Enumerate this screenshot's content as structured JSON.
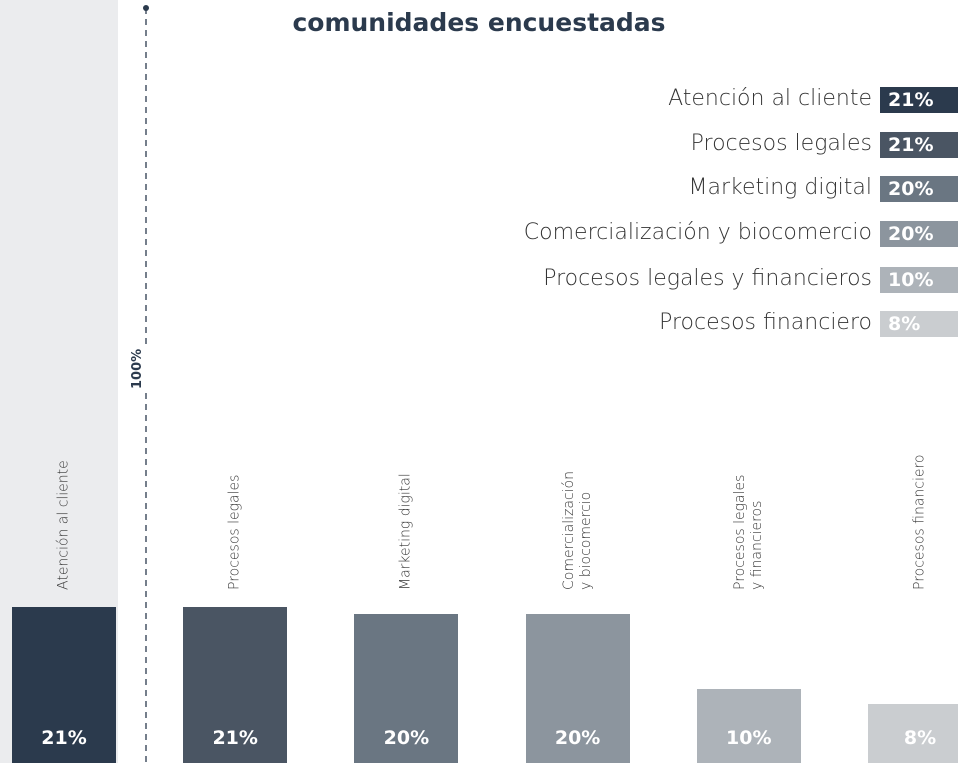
{
  "chart_data": {
    "type": "bar",
    "title": "comunidades encuestadas",
    "categories": [
      "Atención al cliente",
      "Procesos legales",
      "Marketing digital",
      "Comercialización y biocomercio",
      "Procesos legales y financieros",
      "Procesos financiero"
    ],
    "values": [
      21,
      21,
      20,
      20,
      10,
      8
    ],
    "value_labels": [
      "21%",
      "21%",
      "20%",
      "20%",
      "10%",
      "8%"
    ],
    "colors": [
      "#2b3a4d",
      "#4a5563",
      "#6a7682",
      "#8c959e",
      "#adb3b9",
      "#cacdd0"
    ],
    "ylim": [
      0,
      100
    ],
    "scale_label": "100%"
  }
}
